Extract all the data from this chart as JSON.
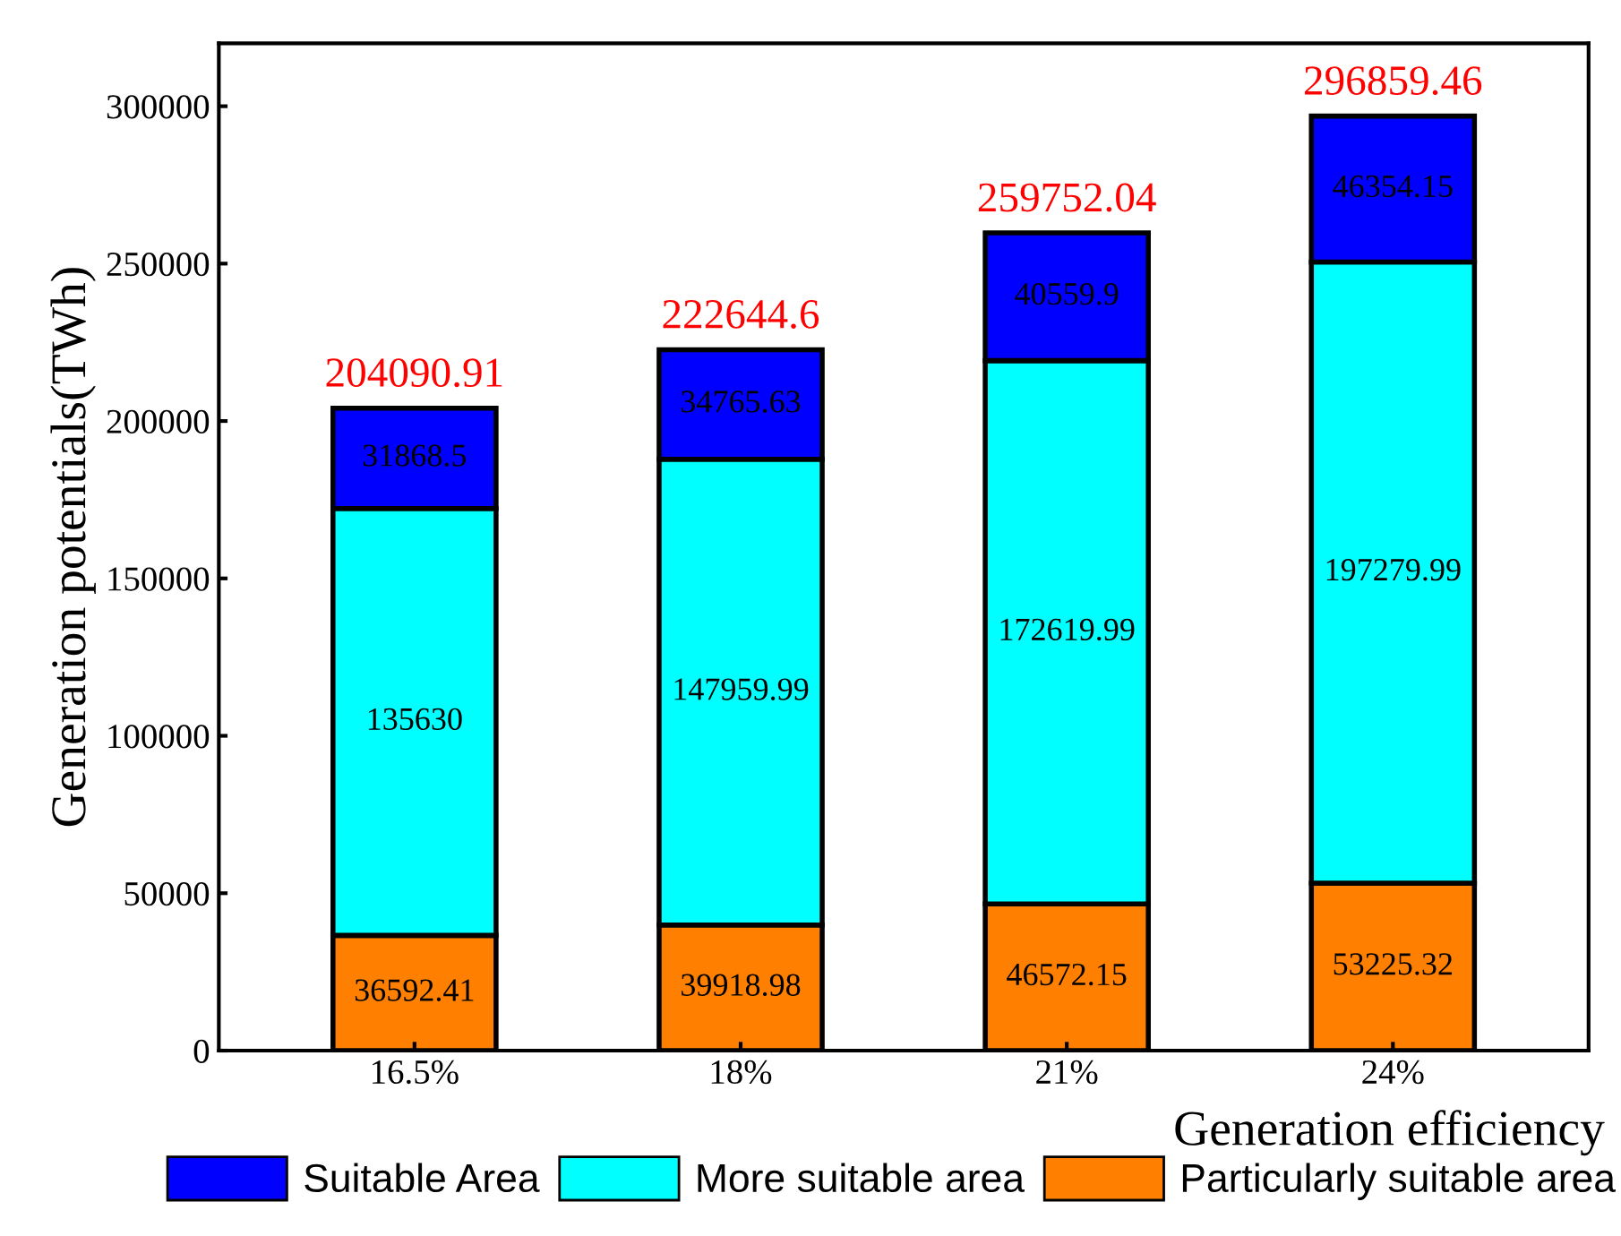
{
  "chart_data": {
    "type": "bar",
    "stacked": true,
    "xlabel": "Generation efficiency",
    "ylabel": "Generation potentials(TWh)",
    "categories": [
      "16.5%",
      "18%",
      "21%",
      "24%"
    ],
    "series": [
      {
        "name": "Particularly suitable area",
        "color": "#ff8000",
        "values": [
          36592.41,
          39918.98,
          46572.15,
          53225.32
        ]
      },
      {
        "name": "More suitable area",
        "color": "#00ffff",
        "values": [
          135630,
          147959.99,
          172619.99,
          197279.99
        ]
      },
      {
        "name": "Suitable Area",
        "color": "#0000ff",
        "values": [
          31868.5,
          34765.63,
          40559.9,
          46354.15
        ]
      }
    ],
    "totals": [
      "204090.91",
      "222644.6",
      "259752.04",
      "296859.46"
    ],
    "data_labels": true,
    "ylim": [
      0,
      320000
    ],
    "yticks": [
      0,
      50000,
      100000,
      150000,
      200000,
      250000,
      300000
    ],
    "grid": false,
    "legend": "bottom"
  }
}
